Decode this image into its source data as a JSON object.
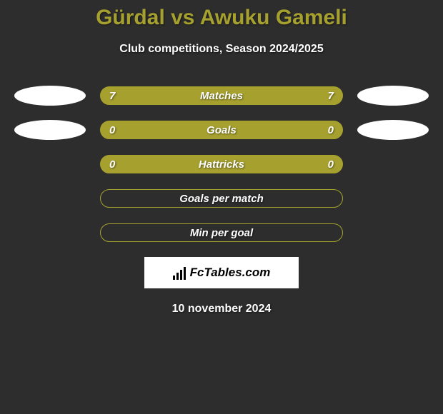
{
  "title": "Gürdal vs Awuku Gameli",
  "subtitle": "Club competitions, Season 2024/2025",
  "rows": [
    {
      "label": "Matches",
      "left": "7",
      "right": "7",
      "filled": true,
      "show_ovals": true
    },
    {
      "label": "Goals",
      "left": "0",
      "right": "0",
      "filled": true,
      "show_ovals": true
    },
    {
      "label": "Hattricks",
      "left": "0",
      "right": "0",
      "filled": true,
      "show_ovals": false
    },
    {
      "label": "Goals per match",
      "left": "",
      "right": "",
      "filled": false,
      "show_ovals": false
    },
    {
      "label": "Min per goal",
      "left": "",
      "right": "",
      "filled": false,
      "show_ovals": false
    }
  ],
  "brand": "FcTables.com",
  "date": "10 november 2024",
  "colors": {
    "accent": "#a6a02f",
    "bg": "#2d2d2d",
    "text": "#ffffff"
  }
}
